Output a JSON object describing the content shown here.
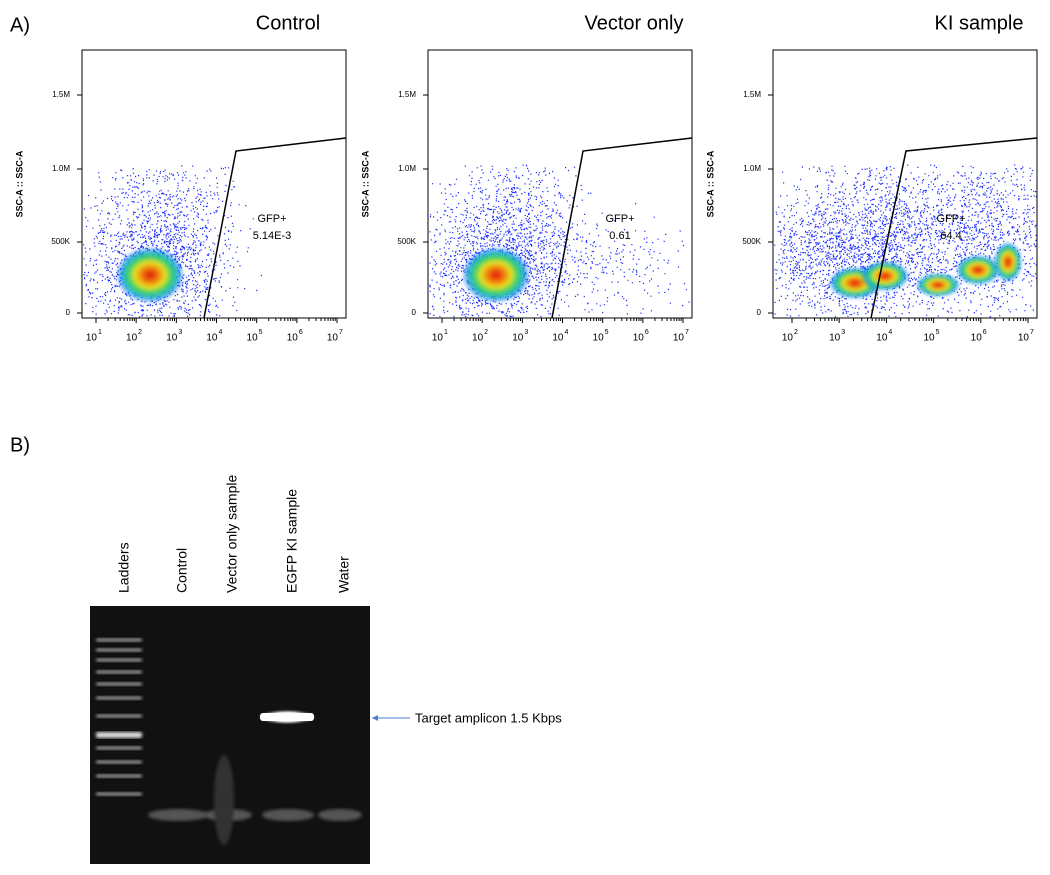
{
  "panel_a": {
    "label": "A)",
    "plots": [
      {
        "title": "Control",
        "y_label": "SSC-A :: SSC-A",
        "yticks": [
          "0",
          "500K",
          "1.0M",
          "1.5M"
        ],
        "xticks": [
          {
            "base": "10",
            "exp": "1"
          },
          {
            "base": "10",
            "exp": "2"
          },
          {
            "base": "10",
            "exp": "3"
          },
          {
            "base": "10",
            "exp": "4"
          },
          {
            "base": "10",
            "exp": "5"
          },
          {
            "base": "10",
            "exp": "6"
          },
          {
            "base": "10",
            "exp": "7"
          }
        ],
        "gate": {
          "name": "GFP+",
          "value": "5.14E-3"
        }
      },
      {
        "title": "Vector only",
        "y_label": "SSC-A :: SSC-A",
        "yticks": [
          "0",
          "500K",
          "1.0M",
          "1.5M"
        ],
        "xticks": [
          {
            "base": "10",
            "exp": "1"
          },
          {
            "base": "10",
            "exp": "2"
          },
          {
            "base": "10",
            "exp": "3"
          },
          {
            "base": "10",
            "exp": "4"
          },
          {
            "base": "10",
            "exp": "5"
          },
          {
            "base": "10",
            "exp": "6"
          },
          {
            "base": "10",
            "exp": "7"
          }
        ],
        "gate": {
          "name": "GFP+",
          "value": "0.61"
        }
      },
      {
        "title": "KI sample",
        "y_label": "SSC-A :: SSC-A",
        "yticks": [
          "0",
          "500K",
          "1.0M",
          "1.5M"
        ],
        "xticks": [
          {
            "base": "10",
            "exp": "2"
          },
          {
            "base": "10",
            "exp": "3"
          },
          {
            "base": "10",
            "exp": "4"
          },
          {
            "base": "10",
            "exp": "5"
          },
          {
            "base": "10",
            "exp": "6"
          },
          {
            "base": "10",
            "exp": "7"
          }
        ],
        "gate": {
          "name": "GFP+",
          "value": "64.4"
        }
      }
    ]
  },
  "panel_b": {
    "label": "B)",
    "lanes": [
      "Ladders",
      "Control",
      "Vector only sample",
      "EGFP KI sample",
      "Water"
    ],
    "annotation": "Target amplicon 1.5 Kbps"
  }
}
